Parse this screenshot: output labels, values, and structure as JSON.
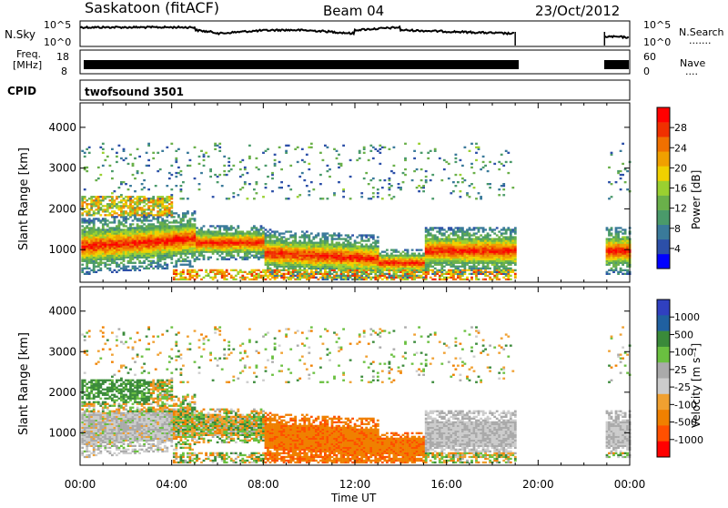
{
  "header": {
    "title": "Saskatoon (fitACF)",
    "beam": "Beam 04",
    "date": "23/Oct/2012"
  },
  "noise_panel": {
    "left_label": "N.Sky",
    "left_ticks": [
      "10^5",
      "10^0"
    ],
    "right_ticks": [
      "10^5",
      "10^0"
    ],
    "right_label": "N.Search",
    "right_legend_line": "......."
  },
  "freq_panel": {
    "left_label_1": "Freq.",
    "left_label_2": "[MHz]",
    "left_ticks": [
      "18",
      "8"
    ],
    "right_ticks": [
      "60",
      "0"
    ],
    "right_label": "Nave",
    "right_legend_line": "...."
  },
  "cpid_panel": {
    "label": "CPID",
    "program": "twofsound 3501"
  },
  "colors": {
    "power": [
      "#0000ff",
      "#2c4fa8",
      "#3a7a9a",
      "#4a9a6a",
      "#6ab04a",
      "#9ad030",
      "#f0d000",
      "#f0a000",
      "#f07000",
      "#f03000",
      "#ff0000"
    ],
    "velocity": [
      "#3040c0",
      "#2060a0",
      "#3a8a3a",
      "#6ac040",
      "#aaaaaa",
      "#cccccc",
      "#f0a030",
      "#f08000",
      "#ff5000",
      "#ff0000"
    ]
  },
  "chart_data": [
    {
      "type": "heatmap",
      "panel": "power",
      "ylabel": "Slant Range [km]",
      "yticks": [
        "1000",
        "2000",
        "3000",
        "4000"
      ],
      "ylim": [
        200,
        4600
      ],
      "xlim": [
        0,
        24
      ],
      "colorbar": {
        "label": "Power [dB]",
        "ticks": [
          "4",
          "8",
          "12",
          "16",
          "20",
          "24",
          "28"
        ],
        "range": [
          0,
          32
        ]
      },
      "data_gaps_ut": [
        [
          19.0,
          22.9
        ]
      ]
    },
    {
      "type": "heatmap",
      "panel": "velocity",
      "ylabel": "Slant Range [km]",
      "yticks": [
        "1000",
        "2000",
        "3000",
        "4000"
      ],
      "ylim": [
        200,
        4600
      ],
      "xlim": [
        0,
        24
      ],
      "colorbar": {
        "label": "Velocity [m s⁻¹]",
        "ticks": [
          "1000",
          "500",
          "100",
          "25",
          "-25",
          "-100",
          "-500",
          "-1000"
        ]
      },
      "data_gaps_ut": [
        [
          19.0,
          22.9
        ]
      ]
    }
  ],
  "xaxis": {
    "ticks": [
      "00:00",
      "04:00",
      "08:00",
      "12:00",
      "16:00",
      "20:00",
      "00:00"
    ],
    "label": "Time UT"
  }
}
